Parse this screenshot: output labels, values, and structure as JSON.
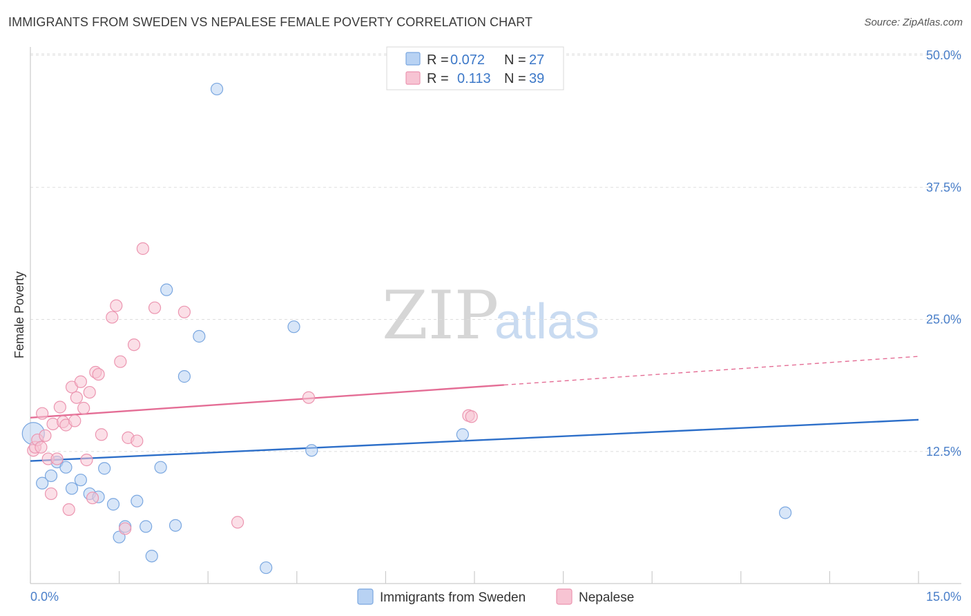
{
  "header": {
    "title": "IMMIGRANTS FROM SWEDEN VS NEPALESE FEMALE POVERTY CORRELATION CHART",
    "source": "Source: ZipAtlas.com"
  },
  "watermark": {
    "zip": "ZIP",
    "atlas": "atlas"
  },
  "legend": {
    "r_label": "R =",
    "n_label": "N =",
    "entries": [
      {
        "r": "0.072",
        "n": "27"
      },
      {
        "r": "0.113",
        "n": "39"
      }
    ]
  },
  "colors": {
    "sweden_fill": "#b8d2f3",
    "sweden_stroke": "#7aa7e0",
    "sweden_line": "#2d6fc9",
    "nepal_fill": "#f7c4d3",
    "nepal_stroke": "#ec95b0",
    "nepal_line": "#e46d95",
    "grid": "#dddddd",
    "axis_label": "#4a7fc9"
  },
  "chart_data": {
    "type": "scatter",
    "title": "IMMIGRANTS FROM SWEDEN VS NEPALESE FEMALE POVERTY CORRELATION CHART",
    "xlabel": "",
    "ylabel": "Female Poverty",
    "xlim": [
      0,
      15
    ],
    "ylim": [
      0,
      50
    ],
    "x_tick_labels": [
      "0.0%",
      "15.0%"
    ],
    "y_ticks": [
      12.5,
      25.0,
      37.5,
      50.0
    ],
    "y_tick_labels": [
      "12.5%",
      "25.0%",
      "37.5%",
      "50.0%"
    ],
    "grid": true,
    "legend_position": "top-center",
    "series": [
      {
        "name": "Immigrants from Sweden",
        "r": 0.072,
        "n": 27,
        "trend": {
          "x": [
            0,
            15
          ],
          "y": [
            11.6,
            15.5
          ],
          "dashed_from": null
        },
        "points": [
          [
            0.05,
            14.2
          ],
          [
            0.2,
            9.5
          ],
          [
            0.35,
            10.2
          ],
          [
            0.45,
            11.5
          ],
          [
            0.6,
            11.0
          ],
          [
            0.7,
            9.0
          ],
          [
            0.85,
            9.8
          ],
          [
            1.0,
            8.5
          ],
          [
            1.15,
            8.2
          ],
          [
            1.25,
            10.9
          ],
          [
            1.4,
            7.5
          ],
          [
            1.5,
            4.4
          ],
          [
            1.6,
            5.4
          ],
          [
            1.8,
            7.8
          ],
          [
            1.95,
            5.4
          ],
          [
            2.05,
            2.6
          ],
          [
            2.2,
            11.0
          ],
          [
            2.3,
            27.8
          ],
          [
            2.45,
            5.5
          ],
          [
            2.6,
            19.6
          ],
          [
            2.85,
            23.4
          ],
          [
            3.15,
            46.8
          ],
          [
            3.98,
            1.5
          ],
          [
            4.45,
            24.3
          ],
          [
            4.75,
            12.6
          ],
          [
            7.3,
            14.1
          ],
          [
            12.75,
            6.7
          ]
        ]
      },
      {
        "name": "Nepalese",
        "r": 0.113,
        "n": 39,
        "trend": {
          "x": [
            0,
            15
          ],
          "y": [
            15.7,
            21.5
          ],
          "dashed_from": 8.0
        },
        "points": [
          [
            0.05,
            12.6
          ],
          [
            0.08,
            12.9
          ],
          [
            0.12,
            13.6
          ],
          [
            0.18,
            12.9
          ],
          [
            0.2,
            16.1
          ],
          [
            0.25,
            14.0
          ],
          [
            0.3,
            11.8
          ],
          [
            0.35,
            8.5
          ],
          [
            0.38,
            15.1
          ],
          [
            0.45,
            11.8
          ],
          [
            0.5,
            16.7
          ],
          [
            0.55,
            15.3
          ],
          [
            0.6,
            15.0
          ],
          [
            0.65,
            7.0
          ],
          [
            0.7,
            18.6
          ],
          [
            0.75,
            15.4
          ],
          [
            0.78,
            17.6
          ],
          [
            0.85,
            19.1
          ],
          [
            0.9,
            16.6
          ],
          [
            0.95,
            11.7
          ],
          [
            1.0,
            18.1
          ],
          [
            1.05,
            8.1
          ],
          [
            1.1,
            20.0
          ],
          [
            1.15,
            19.8
          ],
          [
            1.2,
            14.1
          ],
          [
            1.38,
            25.2
          ],
          [
            1.45,
            26.3
          ],
          [
            1.52,
            21.0
          ],
          [
            1.6,
            5.2
          ],
          [
            1.65,
            13.8
          ],
          [
            1.75,
            22.6
          ],
          [
            1.8,
            13.5
          ],
          [
            1.9,
            31.7
          ],
          [
            2.1,
            26.1
          ],
          [
            2.6,
            25.7
          ],
          [
            3.5,
            5.8
          ],
          [
            4.7,
            17.6
          ],
          [
            7.4,
            15.9
          ],
          [
            7.45,
            15.8
          ]
        ]
      }
    ]
  }
}
